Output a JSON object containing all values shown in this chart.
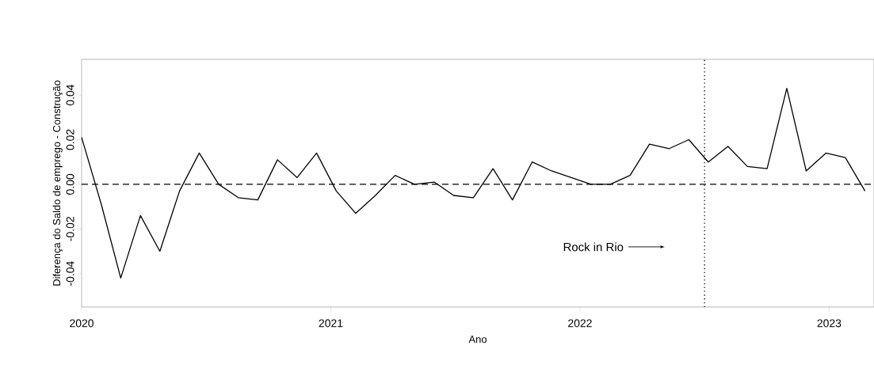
{
  "chart_data": {
    "type": "line",
    "xlabel": "Ano",
    "ylabel": "Diferença do Saldo de emprego - Construção",
    "x": [
      2020.0,
      2020.079,
      2020.157,
      2020.236,
      2020.314,
      2020.393,
      2020.472,
      2020.55,
      2020.629,
      2020.707,
      2020.786,
      2020.865,
      2020.943,
      2021.022,
      2021.1,
      2021.179,
      2021.258,
      2021.336,
      2021.415,
      2021.493,
      2021.572,
      2021.651,
      2021.729,
      2021.808,
      2021.886,
      2021.965,
      2022.044,
      2022.122,
      2022.201,
      2022.279,
      2022.358,
      2022.437,
      2022.515,
      2022.594,
      2022.672,
      2022.751,
      2022.83,
      2022.908,
      2022.987,
      2023.065,
      2023.144
    ],
    "values": [
      0.021,
      -0.009,
      -0.042,
      -0.014,
      -0.03,
      -0.003,
      0.014,
      0.0,
      -0.006,
      -0.007,
      0.011,
      0.003,
      0.014,
      -0.003,
      -0.013,
      -0.005,
      0.004,
      0.0,
      0.001,
      -0.005,
      -0.006,
      0.007,
      -0.007,
      0.01,
      0.006,
      0.003,
      0.0,
      0.0,
      0.004,
      0.018,
      0.016,
      0.02,
      0.01,
      0.017,
      0.008,
      0.007,
      0.043,
      0.006,
      0.014,
      0.012,
      -0.003
    ],
    "color": "#000000",
    "line_style": "solid",
    "xlim": [
      2020,
      2023.18
    ],
    "ylim": [
      -0.055,
      0.056
    ],
    "xticks": [
      2020,
      2021,
      2022,
      2023
    ],
    "yticks": [
      {
        "value": -0.04,
        "label": "-0.04"
      },
      {
        "value": -0.02,
        "label": "-0.02"
      },
      {
        "value": 0,
        "label": "0.00"
      },
      {
        "value": 0.02,
        "label": "0.02"
      },
      {
        "value": 0.04,
        "label": "0.04"
      }
    ],
    "ref_lines": [
      {
        "axis": "y",
        "value": 0,
        "line_style": "dashed"
      },
      {
        "axis": "x",
        "value": 2022.5,
        "line_style": "dotted",
        "label": "Rock in Rio"
      }
    ],
    "grid": false
  }
}
